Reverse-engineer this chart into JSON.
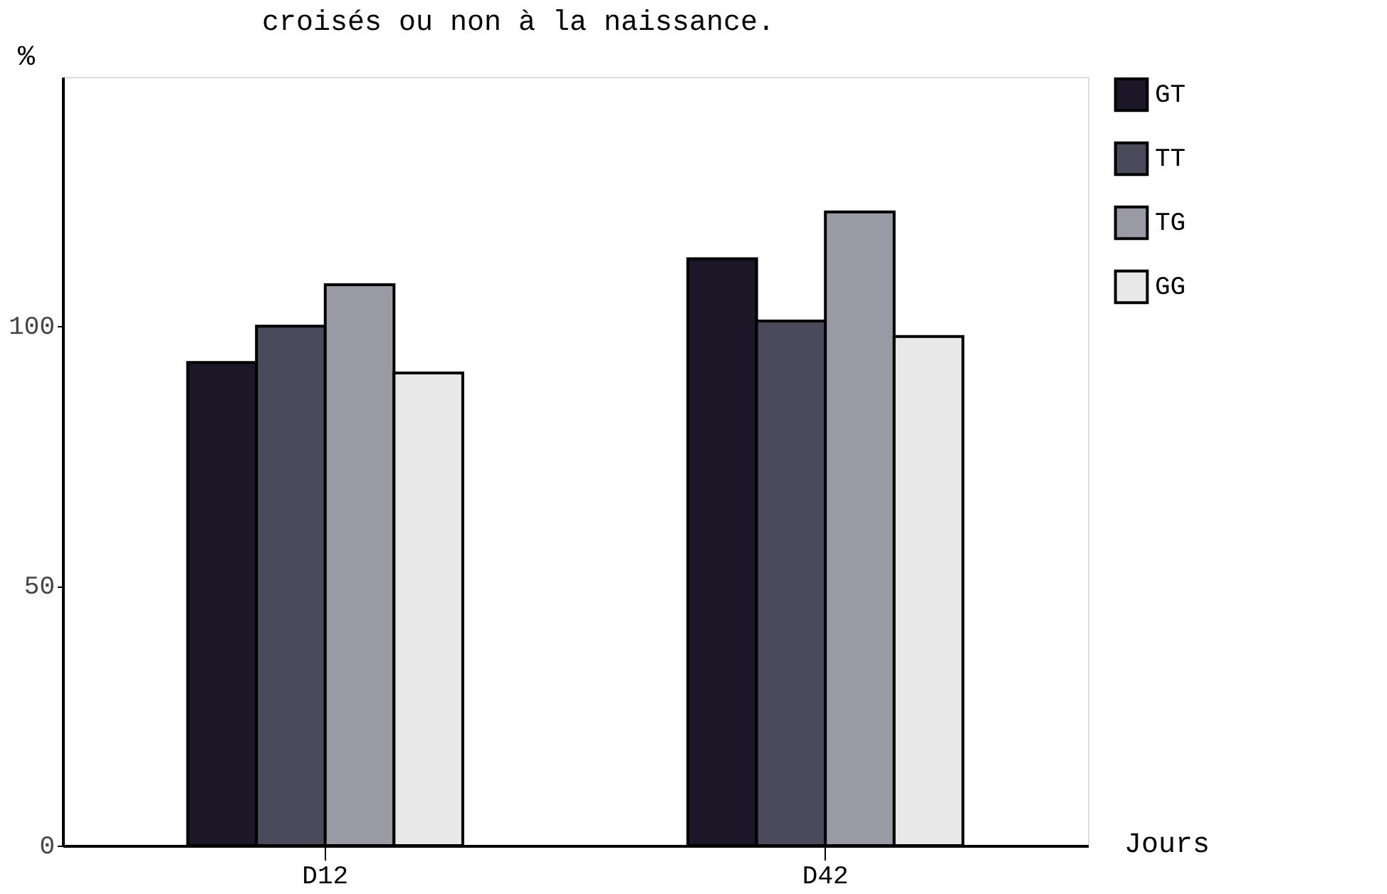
{
  "chart_data": {
    "type": "bar",
    "title": "croisés ou non à la naissance.",
    "xlabel": "Jours",
    "ylabel": "%",
    "categories": [
      "D12",
      "D42"
    ],
    "series": [
      {
        "name": "GT",
        "color": "#1c1626",
        "values": [
          93,
          113
        ]
      },
      {
        "name": "TT",
        "color": "#4a4a5a",
        "values": [
          100,
          101
        ]
      },
      {
        "name": "TG",
        "color": "#9a9aa5",
        "values": [
          108,
          122
        ]
      },
      {
        "name": "GG",
        "color": "#e8e8e8",
        "values": [
          91,
          98
        ]
      }
    ],
    "ylim": [
      0,
      148
    ],
    "yticks": [
      0,
      50,
      100
    ],
    "grid": false,
    "legend": "right"
  }
}
